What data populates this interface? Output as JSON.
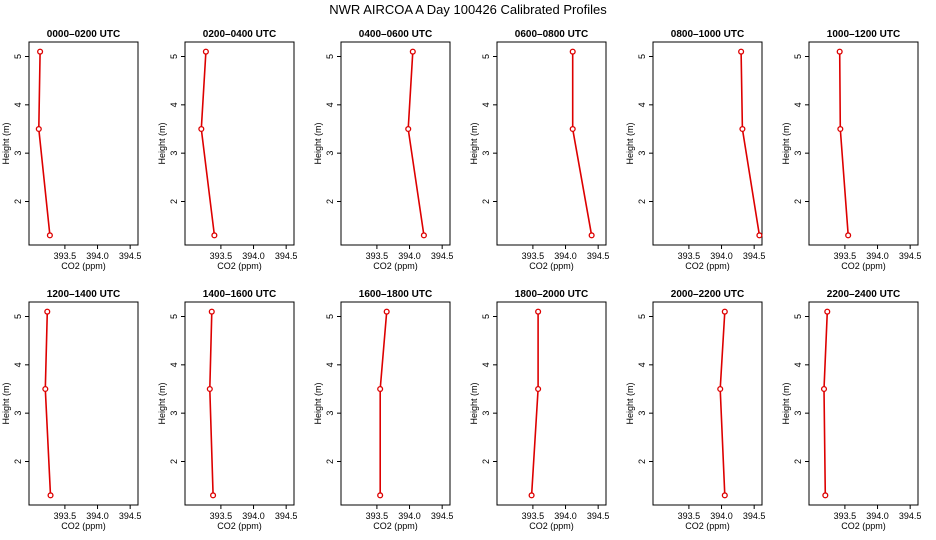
{
  "page_title": "NWR AIRCOA A  Day 100426  Calibrated Profiles",
  "colors": {
    "series": "#dd0000",
    "axis": "#000000",
    "background": "#ffffff"
  },
  "chart_data": [
    {
      "type": "line",
      "title": "0000–0200 UTC",
      "xlabel": "CO2 (ppm)",
      "ylabel": "Height (m)",
      "xlim": [
        392.95,
        394.62
      ],
      "ylim": [
        1.1,
        5.3
      ],
      "xticks": [
        393.5,
        394.0,
        394.5
      ],
      "yticks": [
        2,
        3,
        4,
        5
      ],
      "x": [
        393.27,
        393.1,
        393.12
      ],
      "y": [
        1.3,
        3.5,
        5.1
      ],
      "grid": false,
      "legend": "none"
    },
    {
      "type": "line",
      "title": "0200–0400 UTC",
      "xlabel": "CO2 (ppm)",
      "ylabel": "Height (m)",
      "xlim": [
        392.95,
        394.62
      ],
      "ylim": [
        1.1,
        5.3
      ],
      "xticks": [
        393.5,
        394.0,
        394.5
      ],
      "yticks": [
        2,
        3,
        4,
        5
      ],
      "x": [
        393.4,
        393.2,
        393.27
      ],
      "y": [
        1.3,
        3.5,
        5.1
      ],
      "grid": false,
      "legend": "none"
    },
    {
      "type": "line",
      "title": "0400–0600 UTC",
      "xlabel": "CO2 (ppm)",
      "ylabel": "Height (m)",
      "xlim": [
        392.95,
        394.62
      ],
      "ylim": [
        1.1,
        5.3
      ],
      "xticks": [
        393.5,
        394.0,
        394.5
      ],
      "yticks": [
        2,
        3,
        4,
        5
      ],
      "x": [
        394.22,
        393.98,
        394.05
      ],
      "y": [
        1.3,
        3.5,
        5.1
      ],
      "grid": false,
      "legend": "none"
    },
    {
      "type": "line",
      "title": "0600–0800 UTC",
      "xlabel": "CO2 (ppm)",
      "ylabel": "Height (m)",
      "xlim": [
        392.95,
        394.62
      ],
      "ylim": [
        1.1,
        5.3
      ],
      "xticks": [
        393.5,
        394.0,
        394.5
      ],
      "yticks": [
        2,
        3,
        4,
        5
      ],
      "x": [
        394.4,
        394.11,
        394.11
      ],
      "y": [
        1.3,
        3.5,
        5.1
      ],
      "grid": false,
      "legend": "none"
    },
    {
      "type": "line",
      "title": "0800–1000 UTC",
      "xlabel": "CO2 (ppm)",
      "ylabel": "Height (m)",
      "xlim": [
        392.95,
        394.62
      ],
      "ylim": [
        1.1,
        5.3
      ],
      "xticks": [
        393.5,
        394.0,
        394.5
      ],
      "yticks": [
        2,
        3,
        4,
        5
      ],
      "x": [
        394.58,
        394.32,
        394.3
      ],
      "y": [
        1.3,
        3.5,
        5.1
      ],
      "grid": false,
      "legend": "none"
    },
    {
      "type": "line",
      "title": "1000–1200 UTC",
      "xlabel": "CO2 (ppm)",
      "ylabel": "Height (m)",
      "xlim": [
        392.95,
        394.62
      ],
      "ylim": [
        1.1,
        5.3
      ],
      "xticks": [
        393.5,
        394.0,
        394.5
      ],
      "yticks": [
        2,
        3,
        4,
        5
      ],
      "x": [
        393.55,
        393.43,
        393.42
      ],
      "y": [
        1.3,
        3.5,
        5.1
      ],
      "grid": false,
      "legend": "none"
    },
    {
      "type": "line",
      "title": "1200–1400 UTC",
      "xlabel": "CO2 (ppm)",
      "ylabel": "Height (m)",
      "xlim": [
        392.95,
        394.62
      ],
      "ylim": [
        1.1,
        5.3
      ],
      "xticks": [
        393.5,
        394.0,
        394.5
      ],
      "yticks": [
        2,
        3,
        4,
        5
      ],
      "x": [
        393.28,
        393.2,
        393.23
      ],
      "y": [
        1.3,
        3.5,
        5.1
      ],
      "grid": false,
      "legend": "none"
    },
    {
      "type": "line",
      "title": "1400–1600 UTC",
      "xlabel": "CO2 (ppm)",
      "ylabel": "Height (m)",
      "xlim": [
        392.95,
        394.62
      ],
      "ylim": [
        1.1,
        5.3
      ],
      "xticks": [
        393.5,
        394.0,
        394.5
      ],
      "yticks": [
        2,
        3,
        4,
        5
      ],
      "x": [
        393.38,
        393.33,
        393.36
      ],
      "y": [
        1.3,
        3.5,
        5.1
      ],
      "grid": false,
      "legend": "none"
    },
    {
      "type": "line",
      "title": "1600–1800 UTC",
      "xlabel": "CO2 (ppm)",
      "ylabel": "Height (m)",
      "xlim": [
        392.95,
        394.62
      ],
      "ylim": [
        1.1,
        5.3
      ],
      "xticks": [
        393.5,
        394.0,
        394.5
      ],
      "yticks": [
        2,
        3,
        4,
        5
      ],
      "x": [
        393.55,
        393.55,
        393.65
      ],
      "y": [
        1.3,
        3.5,
        5.1
      ],
      "grid": false,
      "legend": "none"
    },
    {
      "type": "line",
      "title": "1800–2000 UTC",
      "xlabel": "CO2 (ppm)",
      "ylabel": "Height (m)",
      "xlim": [
        392.95,
        394.62
      ],
      "ylim": [
        1.1,
        5.3
      ],
      "xticks": [
        393.5,
        394.0,
        394.5
      ],
      "yticks": [
        2,
        3,
        4,
        5
      ],
      "x": [
        393.48,
        393.58,
        393.58
      ],
      "y": [
        1.3,
        3.5,
        5.1
      ],
      "grid": false,
      "legend": "none"
    },
    {
      "type": "line",
      "title": "2000–2200 UTC",
      "xlabel": "CO2 (ppm)",
      "ylabel": "Height (m)",
      "xlim": [
        392.95,
        394.62
      ],
      "ylim": [
        1.1,
        5.3
      ],
      "xticks": [
        393.5,
        394.0,
        394.5
      ],
      "yticks": [
        2,
        3,
        4,
        5
      ],
      "x": [
        394.05,
        393.98,
        394.05
      ],
      "y": [
        1.3,
        3.5,
        5.1
      ],
      "grid": false,
      "legend": "none"
    },
    {
      "type": "line",
      "title": "2200–2400 UTC",
      "xlabel": "CO2 (ppm)",
      "ylabel": "Height (m)",
      "xlim": [
        392.95,
        394.62
      ],
      "ylim": [
        1.1,
        5.3
      ],
      "xticks": [
        393.5,
        394.0,
        394.5
      ],
      "yticks": [
        2,
        3,
        4,
        5
      ],
      "x": [
        393.2,
        393.18,
        393.23
      ],
      "y": [
        1.3,
        3.5,
        5.1
      ],
      "grid": false,
      "legend": "none"
    }
  ]
}
